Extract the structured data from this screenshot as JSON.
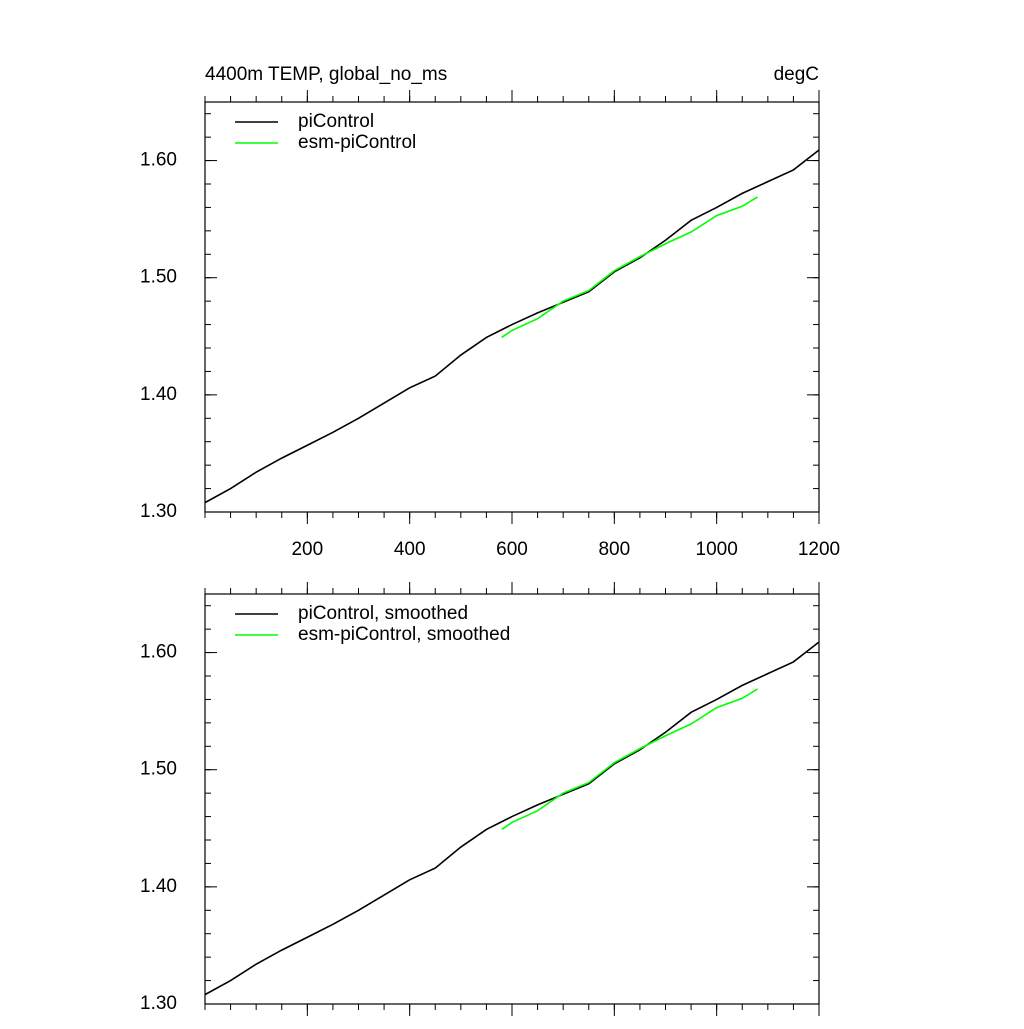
{
  "chart_data": [
    {
      "type": "line",
      "title": "4400m TEMP, global_no_ms",
      "units": "degC",
      "xlim": [
        0,
        1200
      ],
      "xticks": [
        200,
        400,
        600,
        800,
        1000,
        1200
      ],
      "xtick_labels": true,
      "ylim": [
        1.3,
        1.65
      ],
      "yticks": [
        {
          "value": 1.3,
          "label": "1.30"
        },
        {
          "value": 1.4,
          "label": "1.40"
        },
        {
          "value": 1.5,
          "label": "1.50"
        },
        {
          "value": 1.6,
          "label": "1.60"
        }
      ],
      "legend": "upper left",
      "series": [
        {
          "name": "piControl",
          "color": "#000000",
          "x": [
            0,
            50,
            100,
            150,
            200,
            250,
            300,
            350,
            400,
            450,
            500,
            550,
            600,
            650,
            700,
            750,
            800,
            850,
            900,
            950,
            1000,
            1050,
            1100,
            1150,
            1200
          ],
          "values": [
            1.308,
            1.32,
            1.334,
            1.346,
            1.357,
            1.368,
            1.38,
            1.393,
            1.406,
            1.416,
            1.434,
            1.449,
            1.46,
            1.47,
            1.479,
            1.488,
            1.505,
            1.517,
            1.532,
            1.549,
            1.56,
            1.572,
            1.582,
            1.592,
            1.609
          ]
        },
        {
          "name": "esm-piControl",
          "color": "#00ff00",
          "x": [
            580,
            600,
            650,
            700,
            750,
            800,
            850,
            900,
            950,
            1000,
            1050,
            1080
          ],
          "values": [
            1.449,
            1.455,
            1.465,
            1.48,
            1.489,
            1.506,
            1.518,
            1.529,
            1.539,
            1.553,
            1.561,
            1.569
          ]
        }
      ]
    },
    {
      "type": "line",
      "xlim": [
        0,
        1200
      ],
      "xticks": [
        200,
        400,
        600,
        800,
        1000,
        1200
      ],
      "xtick_labels": false,
      "ylim": [
        1.3,
        1.65
      ],
      "yticks": [
        {
          "value": 1.3,
          "label": "1.30"
        },
        {
          "value": 1.4,
          "label": "1.40"
        },
        {
          "value": 1.5,
          "label": "1.50"
        },
        {
          "value": 1.6,
          "label": "1.60"
        }
      ],
      "legend": "upper left",
      "series": [
        {
          "name": "piControl, smoothed",
          "color": "#000000",
          "x": [
            0,
            50,
            100,
            150,
            200,
            250,
            300,
            350,
            400,
            450,
            500,
            550,
            600,
            650,
            700,
            750,
            800,
            850,
            900,
            950,
            1000,
            1050,
            1100,
            1150,
            1200
          ],
          "values": [
            1.308,
            1.32,
            1.334,
            1.346,
            1.357,
            1.368,
            1.38,
            1.393,
            1.406,
            1.416,
            1.434,
            1.449,
            1.46,
            1.47,
            1.479,
            1.488,
            1.505,
            1.517,
            1.532,
            1.549,
            1.56,
            1.572,
            1.582,
            1.592,
            1.609
          ]
        },
        {
          "name": "esm-piControl, smoothed",
          "color": "#00ff00",
          "x": [
            580,
            600,
            650,
            700,
            750,
            800,
            850,
            900,
            950,
            1000,
            1050,
            1080
          ],
          "values": [
            1.449,
            1.455,
            1.465,
            1.48,
            1.489,
            1.506,
            1.518,
            1.529,
            1.539,
            1.553,
            1.561,
            1.569
          ]
        }
      ]
    }
  ]
}
